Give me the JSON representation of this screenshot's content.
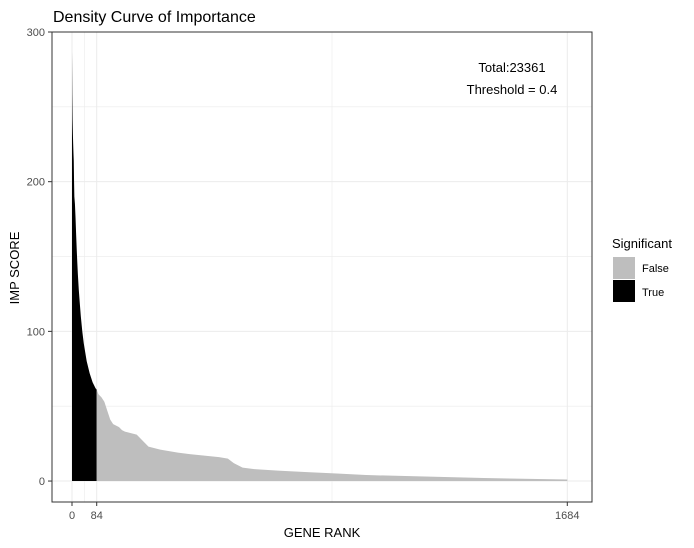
{
  "chart_data": {
    "type": "area",
    "title": "Density Curve of Importance",
    "xlabel": "GENE RANK",
    "ylabel": "IMP SCORE",
    "xlim": [
      -68,
      1768
    ],
    "ylim": [
      -14,
      300
    ],
    "x_ticks": [
      0,
      84,
      1684
    ],
    "y_ticks": [
      0,
      100,
      200,
      300
    ],
    "grid": true,
    "annotations": [
      "Total:23361",
      "Threshold = 0.4"
    ],
    "legend": {
      "title": "Significant",
      "position": "right",
      "entries": [
        {
          "label": "False",
          "color": "#bebebe"
        },
        {
          "label": "True",
          "color": "#000000"
        }
      ]
    },
    "series": [
      {
        "name": "True",
        "color": "#000000",
        "points": [
          [
            0,
            287
          ],
          [
            1,
            258
          ],
          [
            2,
            241
          ],
          [
            3,
            232
          ],
          [
            4,
            225
          ],
          [
            5,
            219
          ],
          [
            6,
            214
          ],
          [
            7,
            200
          ],
          [
            8,
            190
          ],
          [
            10,
            185
          ],
          [
            12,
            176
          ],
          [
            14,
            165
          ],
          [
            16,
            155
          ],
          [
            18,
            146
          ],
          [
            20,
            138
          ],
          [
            23,
            128
          ],
          [
            26,
            120
          ],
          [
            30,
            110
          ],
          [
            35,
            100
          ],
          [
            40,
            92
          ],
          [
            45,
            86
          ],
          [
            50,
            80
          ],
          [
            55,
            76
          ],
          [
            60,
            72
          ],
          [
            65,
            69
          ],
          [
            70,
            66
          ],
          [
            75,
            64
          ],
          [
            80,
            62
          ],
          [
            84,
            61
          ]
        ]
      },
      {
        "name": "False",
        "color": "#bebebe",
        "points": [
          [
            84,
            61
          ],
          [
            90,
            58
          ],
          [
            100,
            56
          ],
          [
            110,
            53
          ],
          [
            120,
            47
          ],
          [
            130,
            41
          ],
          [
            140,
            38
          ],
          [
            150,
            37
          ],
          [
            160,
            36
          ],
          [
            170,
            34
          ],
          [
            180,
            33
          ],
          [
            200,
            32
          ],
          [
            220,
            31
          ],
          [
            230,
            29
          ],
          [
            240,
            27
          ],
          [
            250,
            25
          ],
          [
            260,
            23
          ],
          [
            280,
            22
          ],
          [
            300,
            21
          ],
          [
            330,
            20
          ],
          [
            360,
            19
          ],
          [
            400,
            18
          ],
          [
            450,
            17
          ],
          [
            500,
            16
          ],
          [
            530,
            15
          ],
          [
            550,
            12
          ],
          [
            580,
            9
          ],
          [
            620,
            8
          ],
          [
            700,
            7
          ],
          [
            800,
            6
          ],
          [
            900,
            5
          ],
          [
            1000,
            4
          ],
          [
            1200,
            3
          ],
          [
            1400,
            2
          ],
          [
            1684,
            1
          ]
        ]
      }
    ]
  }
}
